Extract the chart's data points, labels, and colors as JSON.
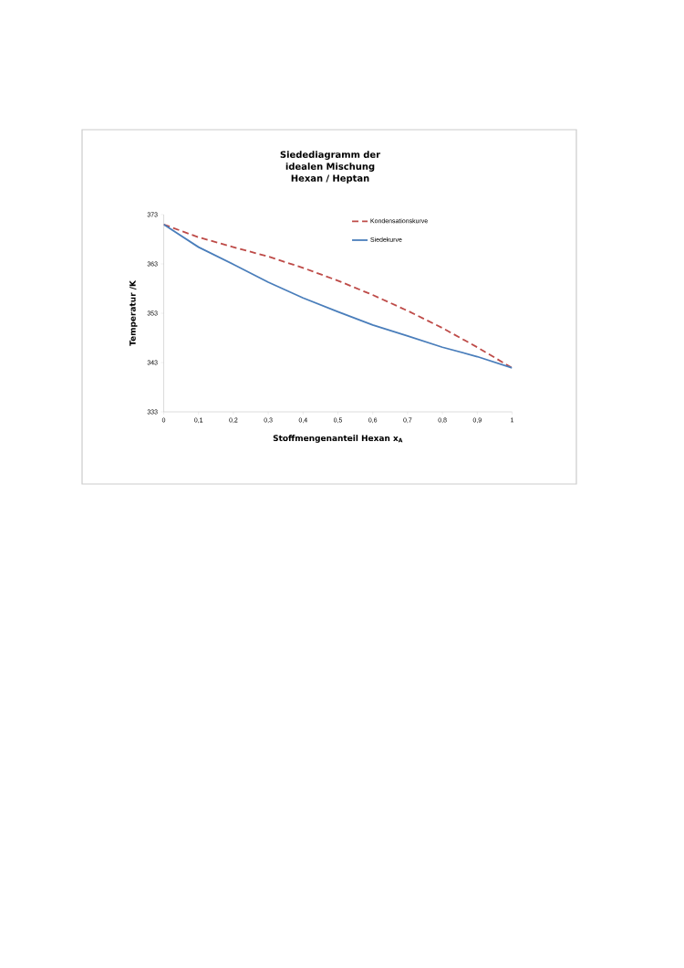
{
  "chart_data": {
    "type": "line",
    "title": "Siedediagramm der idealen Mischung Hexan / Heptan",
    "xlabel": "Stoffmengenanteil Hexan x$_{A}$",
    "ylabel": "Temperatur /K",
    "x": [
      0,
      0.1,
      0.2,
      0.3,
      0.4,
      0.5,
      0.6,
      0.7,
      0.8,
      0.9,
      1.0
    ],
    "series": [
      {
        "name": "Kondensationskurve",
        "color": "#be4b48",
        "line_style": "dashed",
        "values": [
          371.0,
          368.4,
          366.4,
          364.5,
          362.2,
          359.6,
          356.7,
          353.5,
          350.0,
          346.1,
          341.9
        ]
      },
      {
        "name": "Siedekurve",
        "color": "#4a7ebb",
        "line_style": "solid",
        "values": [
          371.0,
          366.4,
          362.9,
          359.3,
          356.1,
          353.3,
          350.6,
          348.4,
          346.1,
          344.2,
          341.9
        ]
      }
    ],
    "xlim": [
      0,
      1
    ],
    "ylim": [
      333,
      373
    ],
    "xticks": [
      0,
      {
        "value": 0.1,
        "label": "0,1"
      },
      {
        "value": 0.2,
        "label": "0,2"
      },
      {
        "value": 0.3,
        "label": "0,3"
      },
      {
        "value": 0.4,
        "label": "0,4"
      },
      {
        "value": 0.5,
        "label": "0,5"
      },
      {
        "value": 0.6,
        "label": "0,6"
      },
      {
        "value": 0.7,
        "label": "0,7"
      },
      {
        "value": 0.8,
        "label": "0,8"
      },
      {
        "value": 0.9,
        "label": "0,9"
      },
      1
    ],
    "yticks": [
      333,
      343,
      353,
      363,
      373
    ],
    "grid": false,
    "legend": "top right"
  }
}
